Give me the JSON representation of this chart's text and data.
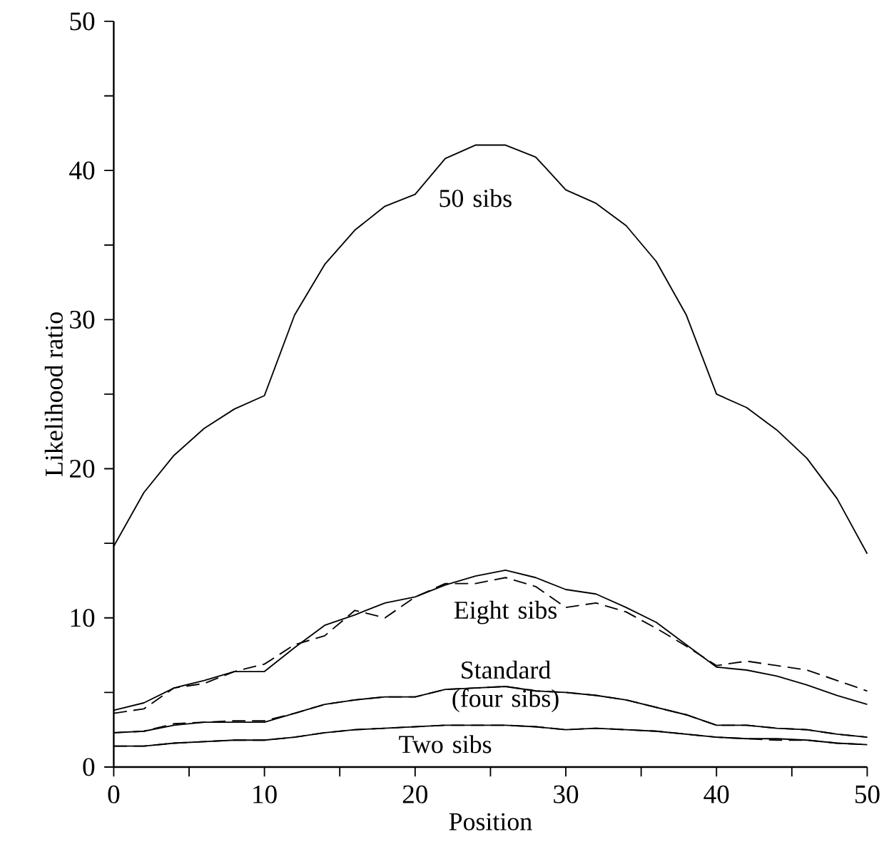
{
  "chart_data": {
    "type": "line",
    "xlabel": "Position",
    "ylabel": "Likelihood ratio",
    "x": [
      0,
      2,
      4,
      6,
      8,
      10,
      12,
      14,
      16,
      18,
      20,
      22,
      24,
      26,
      28,
      30,
      32,
      34,
      36,
      38,
      40,
      42,
      44,
      46,
      48,
      50
    ],
    "xlim": [
      0,
      50
    ],
    "ylim": [
      0,
      50
    ],
    "xticks": [
      0,
      {
        "value": 5,
        "label": null
      },
      10,
      {
        "value": 15,
        "label": null
      },
      20,
      {
        "value": 25,
        "label": null
      },
      30,
      {
        "value": 35,
        "label": null
      },
      40,
      {
        "value": 45,
        "label": null
      },
      50
    ],
    "yticks": [
      0,
      {
        "value": 5,
        "label": null
      },
      10,
      {
        "value": 15,
        "label": null
      },
      20,
      {
        "value": 25,
        "label": null
      },
      30,
      {
        "value": 35,
        "label": null
      },
      40,
      {
        "value": 45,
        "label": null
      },
      50
    ],
    "marker": "none",
    "grid": false,
    "series": [
      {
        "name": "50 sibs",
        "color": "#000000",
        "line_style": "solid",
        "values": [
          14.8,
          18.4,
          20.9,
          22.7,
          24.0,
          24.9,
          30.3,
          33.7,
          36.0,
          37.6,
          38.4,
          40.8,
          41.7,
          41.7,
          40.9,
          38.7,
          37.8,
          36.3,
          33.9,
          30.3,
          25.0,
          24.1,
          22.6,
          20.7,
          18.0,
          14.3
        ]
      },
      {
        "name": "Eight sibs",
        "color": "#000000",
        "line_style": "solid",
        "values": [
          3.8,
          4.3,
          5.3,
          5.8,
          6.4,
          6.4,
          8.0,
          9.5,
          10.2,
          11.0,
          11.4,
          12.2,
          12.8,
          13.2,
          12.7,
          11.9,
          11.6,
          10.7,
          9.7,
          8.2,
          6.7,
          6.5,
          6.1,
          5.5,
          4.8,
          4.2
        ]
      },
      {
        "color": "#000000",
        "line_style": "dashed",
        "values": [
          3.6,
          3.9,
          5.3,
          5.6,
          6.4,
          6.9,
          8.2,
          8.8,
          10.5,
          10.0,
          11.4,
          12.3,
          12.3,
          12.7,
          12.1,
          10.7,
          11.0,
          10.4,
          9.3,
          8.1,
          6.8,
          7.1,
          6.8,
          6.5,
          5.8,
          5.1
        ]
      },
      {
        "name": "Standard (four sibs)",
        "color": "#000000",
        "line_style": "solid",
        "values": [
          2.3,
          2.4,
          2.8,
          3.0,
          3.0,
          3.0,
          3.6,
          4.2,
          4.5,
          4.7,
          4.7,
          5.2,
          5.3,
          5.4,
          5.1,
          5.0,
          4.8,
          4.5,
          4.0,
          3.5,
          2.8,
          2.8,
          2.6,
          2.5,
          2.2,
          2.0
        ]
      },
      {
        "color": "#000000",
        "line_style": "dashed",
        "values": [
          2.3,
          2.4,
          2.9,
          3.0,
          3.1,
          3.1,
          3.6,
          4.2,
          4.5,
          4.7,
          4.7,
          5.2,
          5.3,
          5.4,
          5.1,
          5.0,
          4.8,
          4.5,
          4.0,
          3.5,
          2.8,
          2.8,
          2.6,
          2.5,
          2.2,
          2.0
        ]
      },
      {
        "name": "Two sibs",
        "color": "#000000",
        "line_style": "solid",
        "values": [
          1.4,
          1.4,
          1.6,
          1.7,
          1.8,
          1.8,
          2.0,
          2.3,
          2.5,
          2.6,
          2.7,
          2.8,
          2.8,
          2.8,
          2.7,
          2.5,
          2.6,
          2.5,
          2.4,
          2.2,
          2.0,
          1.9,
          1.9,
          1.8,
          1.6,
          1.5
        ]
      },
      {
        "color": "#000000",
        "line_style": "dashed",
        "values": [
          1.4,
          1.4,
          1.6,
          1.7,
          1.8,
          1.8,
          2.0,
          2.3,
          2.5,
          2.6,
          2.7,
          2.8,
          2.8,
          2.8,
          2.7,
          2.5,
          2.6,
          2.5,
          2.4,
          2.2,
          2.0,
          1.9,
          1.8,
          1.8,
          1.6,
          1.5
        ]
      }
    ]
  }
}
